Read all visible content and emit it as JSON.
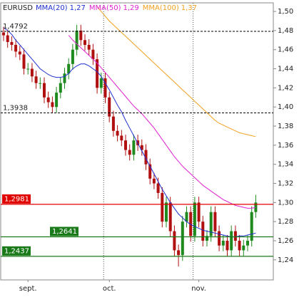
{
  "chart_data": {
    "type": "candlestick",
    "ylim": [
      1.219,
      1.509
    ],
    "yticks": [
      {
        "value": 1.24,
        "label": "1,24"
      },
      {
        "value": 1.26,
        "label": "1,26"
      },
      {
        "value": 1.28,
        "label": "1,28"
      },
      {
        "value": 1.3,
        "label": "1,30"
      },
      {
        "value": 1.32,
        "label": "1,32"
      },
      {
        "value": 1.34,
        "label": "1,34"
      },
      {
        "value": 1.36,
        "label": "1,36"
      },
      {
        "value": 1.38,
        "label": "1,38"
      },
      {
        "value": 1.4,
        "label": "1,40"
      },
      {
        "value": 1.42,
        "label": "1,42"
      },
      {
        "value": 1.44,
        "label": "1,44"
      },
      {
        "value": 1.46,
        "label": "1,46"
      },
      {
        "value": 1.48,
        "label": "1,48"
      },
      {
        "value": 1.5,
        "label": "1,50"
      }
    ],
    "categories": [
      null,
      null,
      null,
      null,
      null,
      null,
      "sept.",
      null,
      null,
      null,
      null,
      null,
      null,
      null,
      null,
      null,
      null,
      null,
      null,
      null,
      null,
      null,
      null,
      null,
      null,
      null,
      "oct.",
      null,
      null,
      null,
      null,
      null,
      null,
      null,
      null,
      null,
      null,
      null,
      null,
      null,
      null,
      null,
      null,
      null,
      null,
      null,
      null,
      null,
      "nov.",
      null,
      null,
      null,
      null,
      null,
      null,
      null,
      null,
      null,
      null,
      null,
      null,
      null,
      null
    ],
    "candles": {
      "name": "EURUSD",
      "up_color": "#1e8a1e",
      "down_color": "#b01010",
      "open": [
        1.478,
        1.475,
        1.468,
        1.465,
        1.458,
        1.455,
        1.44,
        1.44,
        1.432,
        1.425,
        1.425,
        1.41,
        1.405,
        1.4,
        1.415,
        1.425,
        1.435,
        1.445,
        1.46,
        1.48,
        1.47,
        1.465,
        1.46,
        1.45,
        1.42,
        1.43,
        1.41,
        1.39,
        1.375,
        1.37,
        1.365,
        1.355,
        1.35,
        1.365,
        1.36,
        1.355,
        1.34,
        1.325,
        1.32,
        1.31,
        1.28,
        1.3,
        1.27,
        1.25,
        1.245,
        1.28,
        1.29,
        1.265,
        1.3,
        1.28,
        1.26,
        1.265,
        1.29,
        1.27,
        1.255,
        1.26,
        1.25,
        1.27,
        1.26,
        1.25,
        1.255,
        1.26,
        1.29
      ],
      "high": [
        1.484,
        1.481,
        1.474,
        1.471,
        1.464,
        1.461,
        1.446,
        1.446,
        1.438,
        1.431,
        1.431,
        1.416,
        1.411,
        1.421,
        1.431,
        1.441,
        1.451,
        1.466,
        1.486,
        1.486,
        1.476,
        1.471,
        1.466,
        1.456,
        1.436,
        1.436,
        1.416,
        1.396,
        1.381,
        1.376,
        1.371,
        1.361,
        1.371,
        1.371,
        1.366,
        1.361,
        1.346,
        1.331,
        1.326,
        1.316,
        1.306,
        1.306,
        1.276,
        1.256,
        1.286,
        1.296,
        1.296,
        1.306,
        1.306,
        1.286,
        1.271,
        1.296,
        1.296,
        1.276,
        1.266,
        1.266,
        1.276,
        1.276,
        1.266,
        1.261,
        1.266,
        1.296,
        1.308
      ],
      "low": [
        1.469,
        1.462,
        1.459,
        1.452,
        1.449,
        1.434,
        1.434,
        1.426,
        1.419,
        1.419,
        1.404,
        1.399,
        1.394,
        1.394,
        1.409,
        1.419,
        1.429,
        1.439,
        1.454,
        1.464,
        1.459,
        1.454,
        1.444,
        1.414,
        1.414,
        1.404,
        1.384,
        1.369,
        1.364,
        1.359,
        1.349,
        1.344,
        1.344,
        1.354,
        1.349,
        1.334,
        1.319,
        1.314,
        1.304,
        1.274,
        1.274,
        1.264,
        1.244,
        1.233,
        1.239,
        1.274,
        1.259,
        1.259,
        1.274,
        1.254,
        1.254,
        1.259,
        1.264,
        1.249,
        1.249,
        1.244,
        1.244,
        1.254,
        1.244,
        1.244,
        1.249,
        1.254,
        1.284
      ],
      "close": [
        1.475,
        1.468,
        1.465,
        1.458,
        1.455,
        1.44,
        1.44,
        1.432,
        1.425,
        1.425,
        1.41,
        1.405,
        1.4,
        1.415,
        1.425,
        1.435,
        1.445,
        1.46,
        1.48,
        1.47,
        1.465,
        1.46,
        1.45,
        1.42,
        1.43,
        1.41,
        1.39,
        1.375,
        1.37,
        1.365,
        1.355,
        1.35,
        1.365,
        1.36,
        1.355,
        1.34,
        1.325,
        1.32,
        1.31,
        1.28,
        1.3,
        1.27,
        1.25,
        1.245,
        1.28,
        1.29,
        1.265,
        1.3,
        1.28,
        1.26,
        1.265,
        1.29,
        1.27,
        1.255,
        1.26,
        1.25,
        1.27,
        1.26,
        1.25,
        1.255,
        1.26,
        1.29,
        1.3
      ]
    },
    "series": [
      {
        "name": "MMA(20)",
        "last_label": "1,27",
        "color": "#1f2fd0",
        "values": [
          1.483,
          1.48,
          1.476,
          1.47,
          1.465,
          1.46,
          1.455,
          1.45,
          1.445,
          1.44,
          1.437,
          1.434,
          1.432,
          1.431,
          1.431,
          1.432,
          1.435,
          1.44,
          1.443,
          1.445,
          1.445,
          1.443,
          1.44,
          1.437,
          1.432,
          1.425,
          1.418,
          1.41,
          1.402,
          1.395,
          1.386,
          1.378,
          1.37,
          1.362,
          1.354,
          1.346,
          1.338,
          1.33,
          1.322,
          1.314,
          1.307,
          1.3,
          1.294,
          1.288,
          1.284,
          1.28,
          1.277,
          1.275,
          1.273,
          1.271,
          1.27,
          1.269,
          1.268,
          1.267,
          1.266,
          1.265,
          1.264,
          1.264,
          1.265,
          1.265,
          1.266,
          1.267,
          1.268
        ]
      },
      {
        "name": "MMA(50)",
        "last_label": "1,29",
        "color": "#e020d0",
        "values": [
          null,
          null,
          null,
          null,
          null,
          null,
          null,
          null,
          null,
          null,
          null,
          null,
          null,
          null,
          null,
          null,
          1.475,
          1.47,
          1.466,
          1.462,
          1.458,
          1.454,
          1.45,
          1.446,
          1.441,
          1.436,
          1.431,
          1.426,
          1.421,
          1.416,
          1.411,
          1.406,
          1.401,
          1.397,
          1.393,
          1.388,
          1.383,
          1.378,
          1.372,
          1.366,
          1.36,
          1.354,
          1.348,
          1.343,
          1.338,
          1.334,
          1.33,
          1.326,
          1.322,
          1.318,
          1.315,
          1.312,
          1.309,
          1.306,
          1.303,
          1.301,
          1.299,
          1.297,
          1.296,
          1.295,
          1.294,
          1.294,
          1.295
        ]
      },
      {
        "name": "MMA(100)",
        "last_label": "1,37",
        "color": "#f0a020",
        "values": [
          null,
          null,
          null,
          null,
          null,
          null,
          null,
          null,
          null,
          null,
          null,
          null,
          null,
          null,
          null,
          null,
          null,
          null,
          null,
          null,
          null,
          null,
          null,
          1.505,
          1.5,
          1.495,
          1.49,
          1.486,
          1.482,
          1.478,
          1.474,
          1.47,
          1.466,
          1.462,
          1.458,
          1.454,
          1.45,
          1.446,
          1.442,
          1.438,
          1.434,
          1.43,
          1.426,
          1.422,
          1.418,
          1.414,
          1.41,
          1.406,
          1.402,
          1.398,
          1.394,
          1.39,
          1.386,
          1.383,
          1.381,
          1.379,
          1.377,
          1.375,
          1.373,
          1.372,
          1.371,
          1.37,
          1.369
        ]
      }
    ],
    "levels": [
      {
        "value": 1.4792,
        "label": "1,4792",
        "color": "#000000",
        "style": "dashed",
        "boxed": false
      },
      {
        "value": 1.3938,
        "label": "1,3938",
        "color": "#000000",
        "style": "dashed",
        "boxed": false
      },
      {
        "value": 1.2981,
        "label": "1,2981",
        "color": "#e00000",
        "style": "solid",
        "boxed": true
      },
      {
        "value": 1.2641,
        "label": "1,2641",
        "color": "#1a7a1a",
        "style": "solid",
        "boxed": true
      },
      {
        "value": 1.2437,
        "label": "1,2437",
        "color": "#1a7a1a",
        "style": "solid",
        "boxed": true
      }
    ]
  }
}
